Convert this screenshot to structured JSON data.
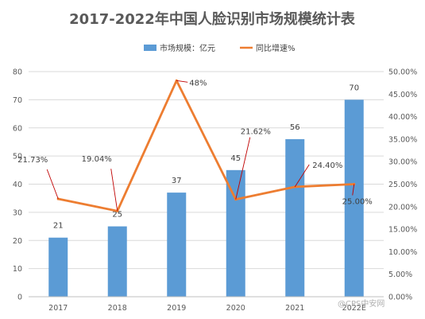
{
  "chart_data": {
    "type": "bar",
    "title": "2017-2022年中国人脸识别市场规模统计表",
    "categories": [
      "2017",
      "2018",
      "2019",
      "2020",
      "2021",
      "2022E"
    ],
    "series": [
      {
        "name": "市场规模：亿元",
        "type": "bar",
        "axis": "left",
        "values": [
          21,
          25,
          37,
          45,
          56,
          70
        ],
        "labels": [
          "21",
          "25",
          "37",
          "45",
          "56",
          "70"
        ]
      },
      {
        "name": "同比增速%",
        "type": "line",
        "axis": "right",
        "values": [
          21.73,
          19.04,
          48.0,
          21.62,
          24.4,
          25.0
        ],
        "labels": [
          "21.73%",
          "19.04%",
          "48%",
          "21.62%",
          "24.40%",
          "25.00%"
        ]
      }
    ],
    "y_left": {
      "min": 0,
      "max": 80,
      "step": 10,
      "ticks": [
        "0",
        "10",
        "20",
        "30",
        "40",
        "50",
        "60",
        "70",
        "80"
      ]
    },
    "y_right": {
      "min": 0,
      "max": 50,
      "step": 5,
      "ticks": [
        "0.00%",
        "5.00%",
        "10.00%",
        "15.00%",
        "20.00%",
        "25.00%",
        "30.00%",
        "35.00%",
        "40.00%",
        "45.00%",
        "50.00%"
      ]
    },
    "legend_position": "top",
    "grid": true,
    "colors": {
      "bar": "#5B9BD5",
      "line": "#ED7D31",
      "leader": "#C00000",
      "grid": "#D9D9D9"
    }
  },
  "watermark": "@CPS中安网"
}
